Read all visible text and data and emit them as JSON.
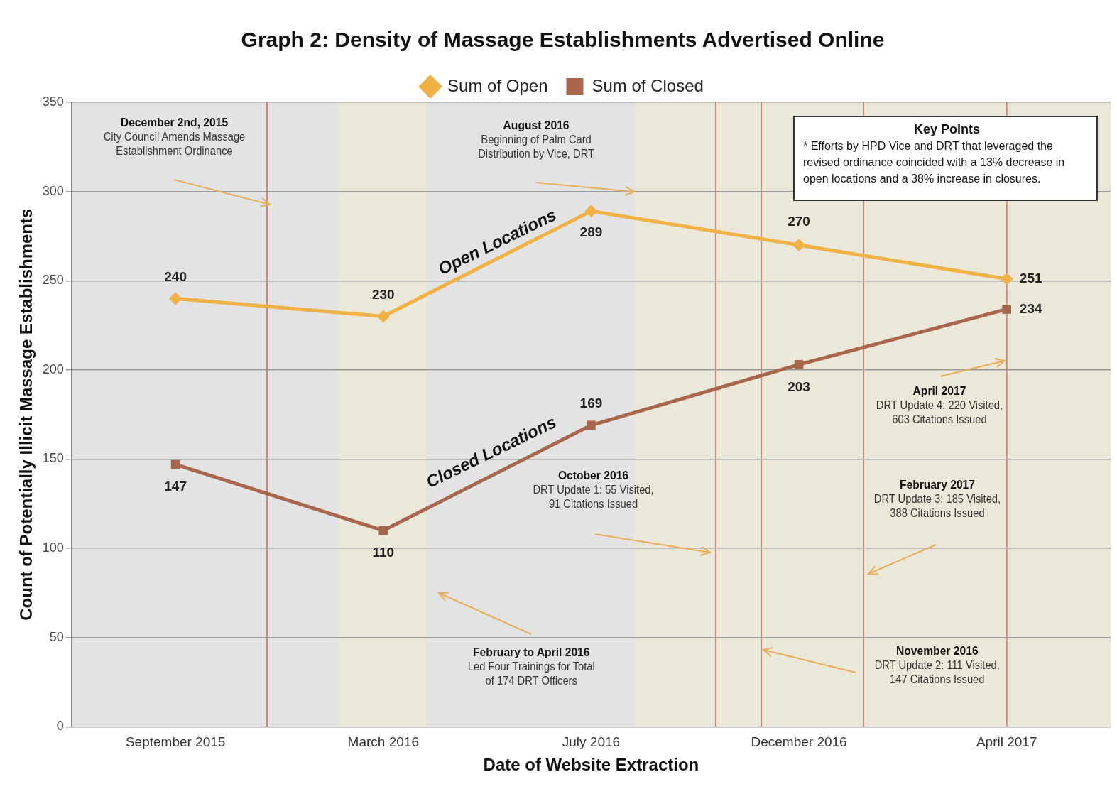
{
  "chart_data": {
    "type": "line",
    "title": "Graph 2: Density of Massage Establishments Advertised Online",
    "xlabel": "Date of Website Extraction",
    "ylabel": "Count of Potentially Illicit Massage Establishments",
    "categories": [
      "September 2015",
      "March 2016",
      "July 2016",
      "December 2016",
      "April 2017"
    ],
    "ylim": [
      0,
      350
    ],
    "yticks": [
      0,
      50,
      100,
      150,
      200,
      250,
      300,
      350
    ],
    "series": [
      {
        "name": "Sum of Open",
        "color": "#f0b247",
        "marker": "diamond",
        "values": [
          240,
          230,
          289,
          270,
          251
        ]
      },
      {
        "name": "Sum of Closed",
        "color": "#a8664c",
        "marker": "square",
        "values": [
          147,
          110,
          169,
          203,
          234
        ]
      }
    ],
    "data_labels": true,
    "grid": "y",
    "legend": "top",
    "ref_lines": [
      {
        "axis": "x",
        "value": "April 2017",
        "color": "#c9877a"
      }
    ],
    "annotations": [
      "December 2nd, 2015\nCity Council Amends Massage\nEstablishment Ordinance",
      "August 2016\nBeginning of Palm Card\nDistribution by Vice, DRT",
      "Key Points\n*  Efforts by HPD Vice and DRT that leveraged the revised ordinance coincided with a 13% decrease in open locations and a 38% increase in closures.",
      "Open Locations",
      "Closed Locations",
      "October 2016\nDRT Update 1: 55 Visited,\n91 Citations Issued",
      {
        "text": "April 2017\nDRT Update 4: 220 Visited,\n603 Citations Issued",
        "x": "April 2017",
        "y": 205
      },
      "February 2017\nDRT Update 3: 185 Visited,\n388 Citations Issued",
      "February to April 2016\nLed Four Trainings for Total\nof 174 DRT Officers",
      "November 2016\nDRT Update 2: 111 Visited,\n147 Citations Issued"
    ]
  }
}
